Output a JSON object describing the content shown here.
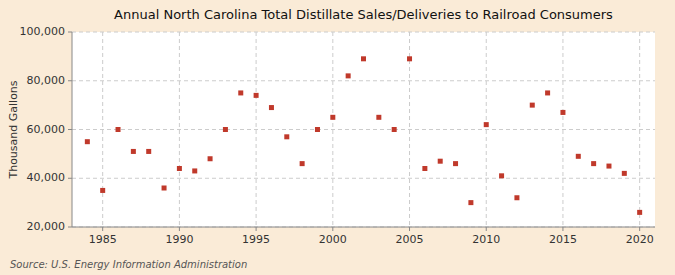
{
  "chart_data": {
    "type": "scatter",
    "title": "Annual North Carolina Total Distillate Sales/Deliveries to Railroad Consumers",
    "ylabel": "Thousand Gallons",
    "source": "Source: U.S. Energy Information Administration",
    "x": [
      1984,
      1985,
      1986,
      1987,
      1988,
      1989,
      1990,
      1991,
      1992,
      1993,
      1994,
      1995,
      1996,
      1997,
      1998,
      1999,
      2000,
      2001,
      2002,
      2003,
      2004,
      2005,
      2006,
      2007,
      2008,
      2009,
      2010,
      2011,
      2012,
      2013,
      2014,
      2015,
      2016,
      2017,
      2018,
      2019,
      2020
    ],
    "values": [
      55000,
      35000,
      60000,
      51000,
      51000,
      36000,
      44000,
      43000,
      48000,
      60000,
      75000,
      74000,
      69000,
      57000,
      46000,
      60000,
      65000,
      82000,
      89000,
      65000,
      60000,
      89000,
      44000,
      47000,
      46000,
      30000,
      62000,
      41000,
      32000,
      70000,
      75000,
      67000,
      49000,
      46000,
      45000,
      42000,
      26000
    ],
    "color": "#c0392b",
    "marker": "square",
    "xlim": [
      1983,
      2021
    ],
    "ylim": [
      20000,
      100000
    ],
    "xticks": [
      1985,
      1990,
      1995,
      2000,
      2005,
      2010,
      2015,
      2020
    ],
    "yticks": [
      {
        "value": 20000,
        "label": "20,000"
      },
      {
        "value": 40000,
        "label": "40,000"
      },
      {
        "value": 60000,
        "label": "60,000"
      },
      {
        "value": 80000,
        "label": "80,000"
      },
      {
        "value": 100000,
        "label": "100,000"
      }
    ],
    "grid": true
  }
}
